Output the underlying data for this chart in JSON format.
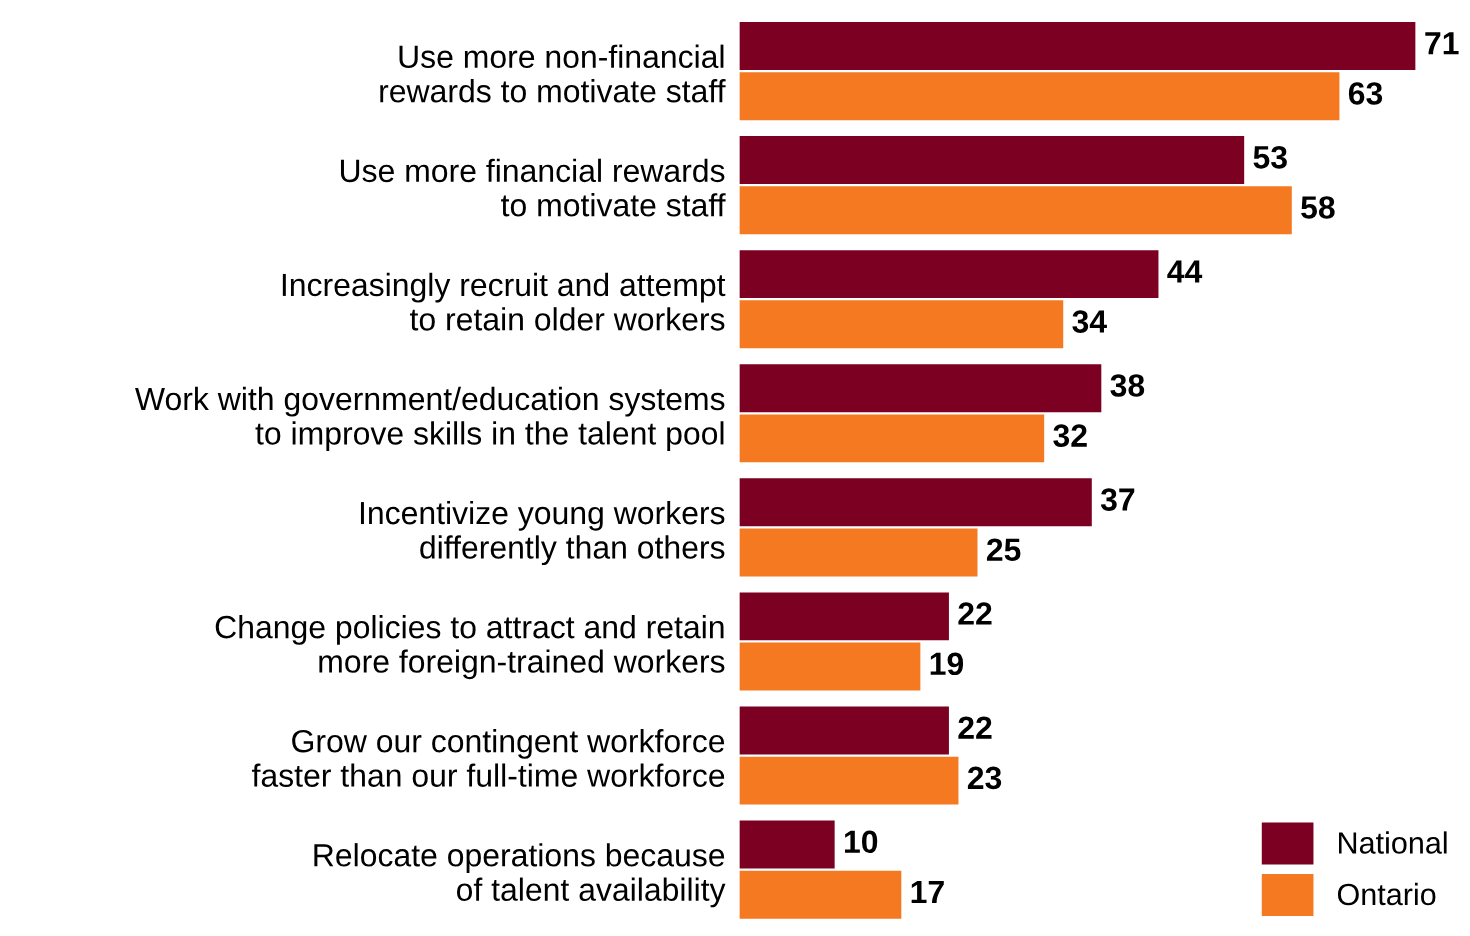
{
  "chart_data": {
    "type": "bar",
    "orientation": "horizontal",
    "categories": [
      "Use more non-financial\nrewards to motivate staff",
      "Use more financial rewards\nto motivate staff",
      "Increasingly recruit and attempt\nto retain older workers",
      "Work with government/education systems\nto improve skills in the talent pool",
      "Incentivize young workers\ndifferently than others",
      "Change policies to attract and retain\nmore foreign-trained workers",
      "Grow our contingent workforce\nfaster than our full-time workforce",
      "Relocate operations because\nof talent availability"
    ],
    "series": [
      {
        "name": "National",
        "color": "#7b0021",
        "values": [
          71,
          53,
          44,
          38,
          37,
          22,
          22,
          10
        ]
      },
      {
        "name": "Ontario",
        "color": "#f47920",
        "values": [
          63,
          58,
          34,
          32,
          25,
          19,
          23,
          17
        ]
      }
    ],
    "data_labels": true,
    "legend": "bottom right",
    "grid": false,
    "tick_labels": "y"
  }
}
